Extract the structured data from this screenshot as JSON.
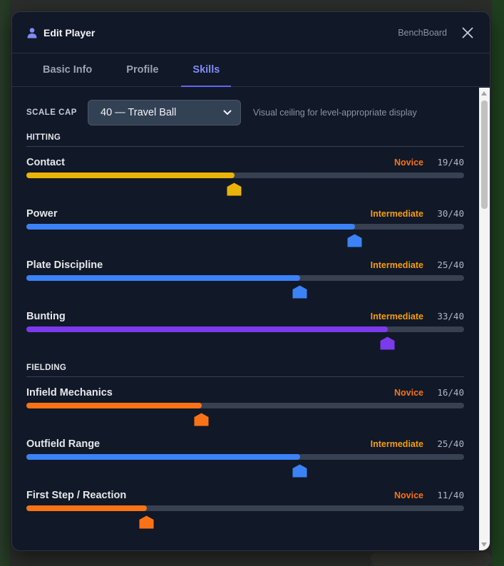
{
  "header": {
    "title": "Edit Player",
    "brand": "BenchBoard"
  },
  "tabs": [
    {
      "label": "Basic Info",
      "active": false
    },
    {
      "label": "Profile",
      "active": false
    },
    {
      "label": "Skills",
      "active": true
    }
  ],
  "scale_cap": {
    "label": "SCALE CAP",
    "selected": "40 — Travel Ball",
    "hint": "Visual ceiling for level-appropriate display",
    "max": 40
  },
  "colors": {
    "yellow": "#eab308",
    "blue": "#3b82f6",
    "purple": "#7c3aed",
    "orange": "#f97316",
    "novice": "#f97316",
    "intermediate": "#f59e0b"
  },
  "sections": [
    {
      "title": "HITTING",
      "skills": [
        {
          "name": "Contact",
          "level": "Novice",
          "score": "19/40",
          "value": 19,
          "bar_color": "yellow"
        },
        {
          "name": "Power",
          "level": "Intermediate",
          "score": "30/40",
          "value": 30,
          "bar_color": "blue"
        },
        {
          "name": "Plate Discipline",
          "level": "Intermediate",
          "score": "25/40",
          "value": 25,
          "bar_color": "blue"
        },
        {
          "name": "Bunting",
          "level": "Intermediate",
          "score": "33/40",
          "value": 33,
          "bar_color": "purple"
        }
      ]
    },
    {
      "title": "FIELDING",
      "skills": [
        {
          "name": "Infield Mechanics",
          "level": "Novice",
          "score": "16/40",
          "value": 16,
          "bar_color": "orange"
        },
        {
          "name": "Outfield Range",
          "level": "Intermediate",
          "score": "25/40",
          "value": 25,
          "bar_color": "blue"
        },
        {
          "name": "First Step / Reaction",
          "level": "Novice",
          "score": "11/40",
          "value": 11,
          "bar_color": "orange"
        }
      ]
    }
  ]
}
